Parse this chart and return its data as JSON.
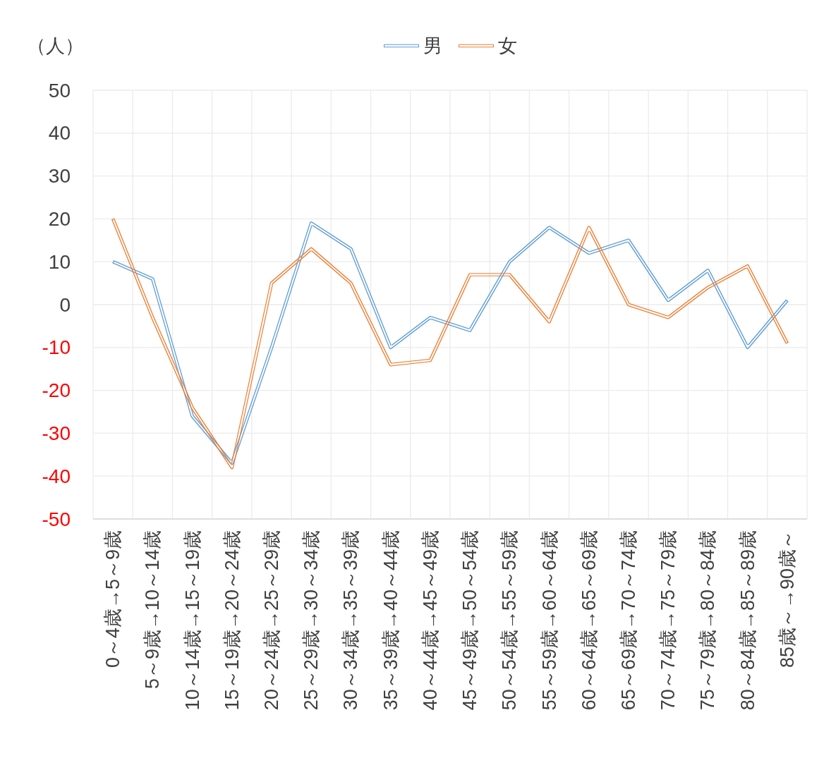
{
  "chart_data": {
    "type": "line",
    "ylabel": "（人）",
    "categories": [
      "0～4歳→5～9歳",
      "5～9歳→10～14歳",
      "10～14歳→15～19歳",
      "15～19歳→20～24歳",
      "20～24歳→25～29歳",
      "25～29歳→30～34歳",
      "30～34歳→35～39歳",
      "35～39歳→40～44歳",
      "40～44歳→45～49歳",
      "45～49歳→50～54歳",
      "50～54歳→55～59歳",
      "55～59歳→60～64歳",
      "60～64歳→65～69歳",
      "65～69歳→70～74歳",
      "70～74歳→75～79歳",
      "75～79歳→80～84歳",
      "80～84歳→85～89歳",
      "85歳～→90歳～"
    ],
    "series": [
      {
        "name": "男",
        "color": "#5b9bd5",
        "values": [
          10,
          6,
          -26,
          -37,
          -10,
          19,
          13,
          -10,
          -3,
          -6,
          10,
          18,
          12,
          15,
          1,
          8,
          -10,
          1
        ]
      },
      {
        "name": "女",
        "color": "#ed7d31",
        "values": [
          20,
          -3,
          -24,
          -38,
          5,
          13,
          5,
          -14,
          -13,
          7,
          7,
          -4,
          18,
          0,
          -3,
          4,
          9,
          -9
        ]
      }
    ],
    "ylim": [
      -50,
      50
    ],
    "yticks": [
      -50,
      -40,
      -30,
      -20,
      -10,
      0,
      10,
      20,
      30,
      40,
      50
    ],
    "grid": true,
    "legend": "top"
  }
}
